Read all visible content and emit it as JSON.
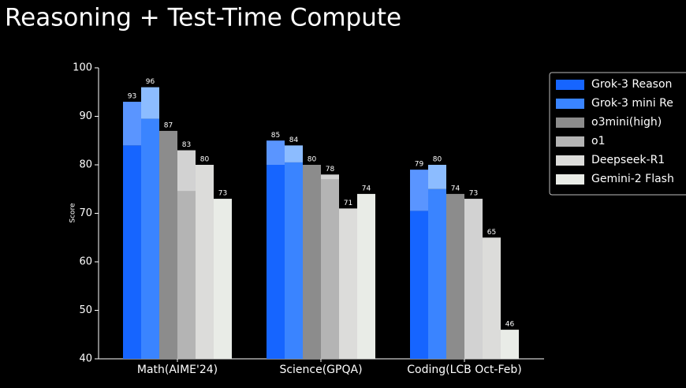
{
  "chart_data": {
    "type": "bar",
    "title": "Reasoning + Test-Time Compute",
    "y_label": "Score",
    "categories": [
      "Math(AIME'24)",
      "Science(GPQA)",
      "Coding(LCB Oct-Feb)"
    ],
    "series": [
      {
        "name": "Grok-3 Reason",
        "color": "#5a95ff",
        "base_color": "#1665ff",
        "values": [
          93,
          85,
          79
        ],
        "base_values": [
          84,
          80,
          70.5
        ]
      },
      {
        "name": "Grok-3 mini Re",
        "color": "#8cbcff",
        "base_color": "#3a84ff",
        "values": [
          96,
          84,
          80
        ],
        "base_values": [
          89.5,
          80.5,
          75
        ]
      },
      {
        "name": "o3mini(high)",
        "color": "#8c8c8c",
        "values": [
          87,
          80,
          74
        ]
      },
      {
        "name": "o1",
        "color": "#d2d2d2",
        "base_color": "#b4b4b4",
        "values": [
          83,
          78,
          73
        ],
        "base_values": [
          74.5,
          77,
          null
        ]
      },
      {
        "name": "Deepseek-R1",
        "color": "#dcdcda",
        "values": [
          80,
          71,
          65
        ]
      },
      {
        "name": "Gemini-2 Flash",
        "color": "#e9ece7",
        "values": [
          73,
          74,
          46
        ]
      }
    ],
    "ylim": [
      40,
      100
    ],
    "yticks": [
      40,
      50,
      60,
      70,
      80,
      90,
      100
    ]
  }
}
